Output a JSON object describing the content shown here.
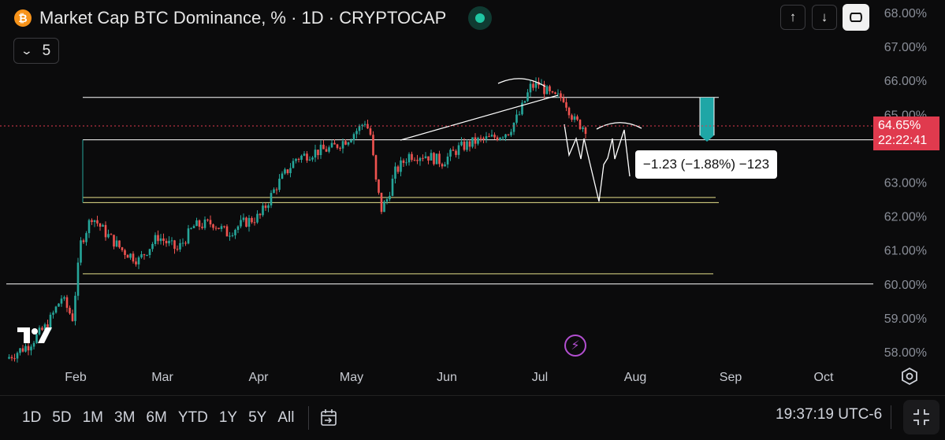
{
  "header": {
    "coin_symbol": "₿",
    "title": "Market Cap BTC Dominance, % · 1D · CRYPTOCAP",
    "indicator_count": "5"
  },
  "colors": {
    "up": "#26a69a",
    "down": "#ef5350",
    "accent_purple": "#b34fd1",
    "price_tag": "#e03a4e",
    "live_green": "#1fc7a3"
  },
  "price_tag": {
    "value": "64.65%",
    "countdown": "22:22:41"
  },
  "tooltip": {
    "text": "−1.23 (−1.88%) −123"
  },
  "bottom_bar": {
    "timeframes": [
      "1D",
      "5D",
      "1M",
      "3M",
      "6M",
      "YTD",
      "1Y",
      "5Y",
      "All"
    ],
    "clock": "19:37:19 UTC-6"
  },
  "chart_data": {
    "type": "candlestick",
    "title": "Market Cap BTC Dominance, %",
    "ylim": [
      57.6,
      68.1
    ],
    "yticks": [
      "68.00%",
      "67.00%",
      "66.00%",
      "65.00%",
      "63.00%",
      "62.00%",
      "61.00%",
      "60.00%",
      "59.00%",
      "58.00%"
    ],
    "ytick_values": [
      68,
      67,
      66,
      65,
      63,
      62,
      61,
      60,
      59,
      58
    ],
    "xticks": [
      "Feb",
      "Mar",
      "Apr",
      "May",
      "Jun",
      "Jul",
      "Aug",
      "Sep",
      "Oct"
    ],
    "close_path": [
      [
        0,
        57.8
      ],
      [
        8,
        58.2
      ],
      [
        15,
        58.8
      ],
      [
        20,
        59.6
      ],
      [
        24,
        59.0
      ],
      [
        27,
        61.2
      ],
      [
        31,
        62.0
      ],
      [
        36,
        61.5
      ],
      [
        42,
        61.0
      ],
      [
        48,
        60.7
      ],
      [
        55,
        61.4
      ],
      [
        62,
        61.0
      ],
      [
        68,
        61.7
      ],
      [
        75,
        61.8
      ],
      [
        80,
        61.5
      ],
      [
        86,
        61.8
      ],
      [
        92,
        62.0
      ],
      [
        98,
        62.9
      ],
      [
        105,
        63.7
      ],
      [
        112,
        63.9
      ],
      [
        118,
        64.0
      ],
      [
        124,
        64.3
      ],
      [
        128,
        64.6
      ],
      [
        130,
        64.8
      ],
      [
        132,
        64.4
      ],
      [
        134,
        63.0
      ],
      [
        136,
        62.2
      ],
      [
        138,
        62.5
      ],
      [
        141,
        63.3
      ],
      [
        146,
        63.8
      ],
      [
        152,
        63.8
      ],
      [
        158,
        63.6
      ],
      [
        164,
        64.0
      ],
      [
        170,
        64.2
      ],
      [
        176,
        64.3
      ],
      [
        182,
        64.5
      ],
      [
        186,
        65.0
      ],
      [
        190,
        65.8
      ],
      [
        193,
        65.9
      ],
      [
        198,
        65.5
      ],
      [
        202,
        65.5
      ],
      [
        206,
        64.8
      ],
      [
        210,
        64.6
      ]
    ],
    "horizontal_lines": [
      65.5,
      64.25,
      62.55,
      62.4,
      60.3,
      60.0
    ],
    "current_price": 64.65,
    "annotation": "−1.23 (−1.88%) −123"
  }
}
